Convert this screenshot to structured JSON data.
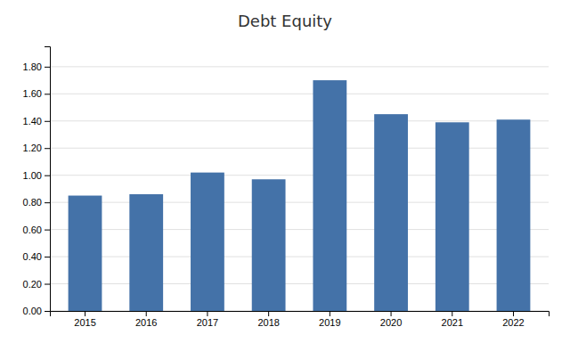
{
  "chart_data": {
    "type": "bar",
    "title": "Debt Equity",
    "categories": [
      "2015",
      "2016",
      "2017",
      "2018",
      "2019",
      "2020",
      "2021",
      "2022"
    ],
    "values": [
      0.85,
      0.86,
      1.02,
      0.97,
      1.7,
      1.45,
      1.39,
      1.41
    ],
    "color": "#4472a8",
    "ylim": [
      0.0,
      1.95
    ],
    "yticks": [
      {
        "value": 0.0,
        "label": "0.00"
      },
      {
        "value": 0.2,
        "label": "0.20"
      },
      {
        "value": 0.4,
        "label": "0.40"
      },
      {
        "value": 0.6,
        "label": "0.60"
      },
      {
        "value": 0.8,
        "label": "0.80"
      },
      {
        "value": 1.0,
        "label": "1.00"
      },
      {
        "value": 1.2,
        "label": "1.20"
      },
      {
        "value": 1.4,
        "label": "1.40"
      },
      {
        "value": 1.6,
        "label": "1.60"
      },
      {
        "value": 1.8,
        "label": "1.80"
      }
    ],
    "grid": true
  }
}
